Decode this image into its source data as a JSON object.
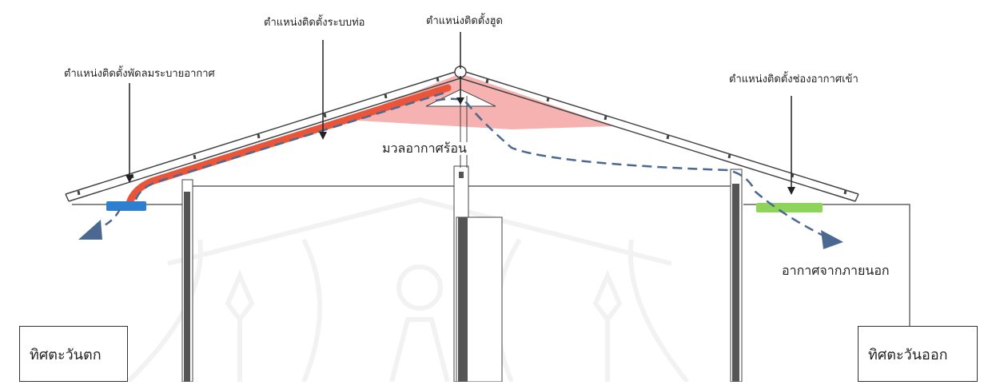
{
  "labels": {
    "fan_position": "ตำแหน่งติดตั้งพัดลมระบายอากาศ",
    "duct_position": "ตำแหน่งติดตั้งระบบท่อ",
    "hood_position": "ตำแหน่งติดตั้งฮูด",
    "inlet_position": "ตำแหน่งติดตั้งช่องอากาศเข้า",
    "hot_air_mass": "มวลอากาศร้อน",
    "outside_air": "อากาศจากภายนอก"
  },
  "directions": {
    "west": "ทิศตะวันตก",
    "east": "ทิศตะวันออก"
  },
  "colors": {
    "duct": "#e8553a",
    "hot_zone": "#f5a3a3",
    "fan": "#2f7fd1",
    "inlet": "#8fd45a",
    "airflow": "#4a6890",
    "wall": "#555555",
    "watermark": "#e6e6e6"
  }
}
